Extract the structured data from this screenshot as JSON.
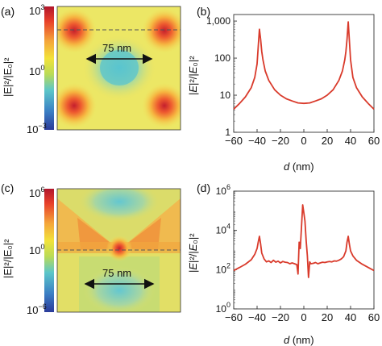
{
  "panels": {
    "a": {
      "label": "(a)",
      "scale_max": "3",
      "scale_mid": "0",
      "scale_min": "−3",
      "ylabel": "|E|²/|E₀|²",
      "annotation": "75 nm"
    },
    "b": {
      "label": "(b)",
      "xlabel": "d (nm)"
    },
    "c": {
      "label": "(c)",
      "scale_max": "6",
      "scale_mid": "0",
      "scale_min": "−6",
      "ylabel": "|E|²/|E₀|²",
      "annotation": "75 nm"
    },
    "d": {
      "label": "(d)",
      "xlabel": "d (nm)"
    }
  },
  "colors": {
    "curve": "#d93a2b",
    "colorbar": [
      "#b2162c",
      "#e8402a",
      "#f4a53a",
      "#f2e23a",
      "#b9db57",
      "#5cc6c9",
      "#3b7fc4",
      "#2b3b9a"
    ]
  },
  "chart_data": [
    {
      "type": "line",
      "panel": "b",
      "title": "",
      "xlabel": "d (nm)",
      "ylabel": "|E|²/|E₀|²",
      "xlim": [
        -60,
        60
      ],
      "ylim": [
        1,
        1500
      ],
      "yscale": "log",
      "xticks": [
        -60,
        -40,
        -20,
        0,
        20,
        40,
        60
      ],
      "yticks": [
        1,
        10,
        100,
        1000
      ],
      "yticklabels": [
        "1",
        "10",
        "100",
        "1,000"
      ],
      "x": [
        -60,
        -55,
        -50,
        -45,
        -42,
        -40,
        -39,
        -38,
        -37,
        -36,
        -35,
        -33,
        -30,
        -25,
        -20,
        -15,
        -10,
        -5,
        0,
        5,
        10,
        15,
        20,
        25,
        30,
        33,
        35,
        36,
        37,
        38,
        39,
        40,
        42,
        45,
        50,
        55,
        60
      ],
      "y": [
        4.2,
        6,
        9,
        16,
        30,
        70,
        200,
        600,
        320,
        150,
        90,
        45,
        25,
        14,
        10,
        8,
        7,
        6.2,
        6,
        6.2,
        7,
        8,
        10,
        14,
        25,
        45,
        90,
        150,
        320,
        950,
        300,
        90,
        30,
        16,
        9,
        6,
        4.2
      ]
    },
    {
      "type": "line",
      "panel": "d",
      "title": "",
      "xlabel": "d (nm)",
      "ylabel": "|E|²/|E₀|²",
      "xlim": [
        -60,
        60
      ],
      "ylim": [
        1,
        1000000
      ],
      "yscale": "log",
      "xticks": [
        -60,
        -40,
        -20,
        0,
        20,
        40,
        60
      ],
      "yticks": [
        1,
        100,
        10000,
        1000000
      ],
      "yticklabels": [
        "10⁰",
        "10²",
        "10⁴",
        "10⁶"
      ],
      "x": [
        -60,
        -55,
        -50,
        -45,
        -42,
        -40,
        -39,
        -38,
        -37,
        -36,
        -34,
        -32,
        -30,
        -28,
        -26,
        -24,
        -22,
        -20,
        -18,
        -16,
        -14,
        -12,
        -10,
        -8,
        -6,
        -5,
        -4,
        -3,
        -2,
        -1,
        0,
        1,
        2,
        3,
        4,
        5,
        6,
        8,
        10,
        12,
        14,
        16,
        18,
        20,
        22,
        24,
        26,
        28,
        30,
        32,
        34,
        36,
        37,
        38,
        39,
        40,
        42,
        45,
        50,
        55,
        60
      ],
      "y": [
        90,
        130,
        190,
        320,
        600,
        1200,
        2500,
        5000,
        2000,
        700,
        350,
        250,
        280,
        230,
        300,
        240,
        270,
        220,
        260,
        240,
        230,
        200,
        220,
        200,
        180,
        60,
        2500,
        1200,
        15000,
        200000,
        80000,
        30000,
        3000,
        500,
        40,
        250,
        200,
        210,
        230,
        200,
        220,
        240,
        230,
        250,
        260,
        250,
        280,
        270,
        300,
        350,
        450,
        900,
        2500,
        5000,
        2000,
        900,
        500,
        300,
        190,
        130,
        90
      ]
    }
  ]
}
